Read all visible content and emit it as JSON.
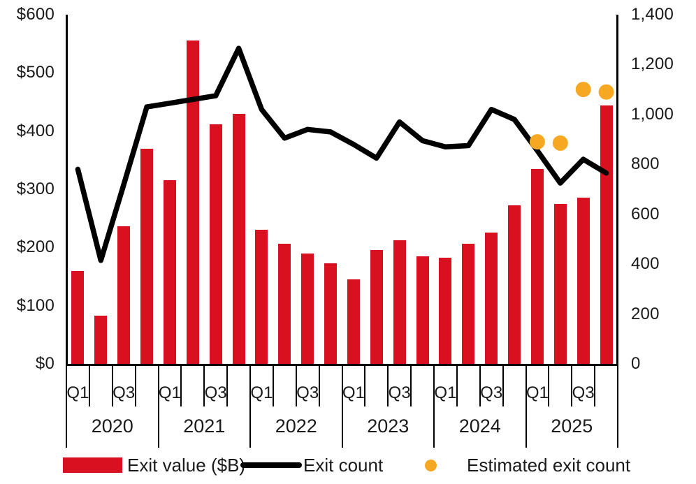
{
  "legend": {
    "items": [
      {
        "label": "Exit value ($B)",
        "color": "#d9101f",
        "swatch": "bar"
      },
      {
        "label": "Exit count",
        "color": "#000000",
        "swatch": "line"
      },
      {
        "label": "Estimated exit count",
        "color": "#f7a823",
        "swatch": "dot"
      }
    ]
  },
  "chart_data": {
    "type": "bar+line",
    "title": "",
    "categories": [
      "2020 Q1",
      "2020 Q2",
      "2020 Q3",
      "2020 Q4",
      "2021 Q1",
      "2021 Q2",
      "2021 Q3",
      "2021 Q4",
      "2022 Q1",
      "2022 Q2",
      "2022 Q3",
      "2022 Q4",
      "2023 Q1",
      "2023 Q2",
      "2023 Q3",
      "2023 Q4",
      "2024 Q1",
      "2024 Q2",
      "2024 Q3",
      "2024 Q4",
      "2025 Q1",
      "2025 Q2",
      "2025 Q3",
      "2025 Q4"
    ],
    "series": [
      {
        "name": "Exit value ($B)",
        "type": "bar",
        "axis": "left",
        "color": "#d9101f",
        "values": [
          160,
          83,
          237,
          370,
          316,
          556,
          412,
          430,
          230,
          206,
          190,
          173,
          145,
          196,
          213,
          185,
          182,
          206,
          226,
          272,
          335,
          275,
          286,
          444
        ]
      },
      {
        "name": "Exit count",
        "type": "line",
        "axis": "right",
        "color": "#000000",
        "values": [
          780,
          415,
          720,
          1030,
          1045,
          1060,
          1075,
          1265,
          1020,
          905,
          940,
          930,
          880,
          825,
          970,
          895,
          870,
          875,
          1020,
          980,
          855,
          725,
          820,
          765
        ]
      },
      {
        "name": "Estimated exit count",
        "type": "scatter",
        "axis": "right",
        "color": "#f7a823",
        "values": [
          null,
          null,
          null,
          null,
          null,
          null,
          null,
          null,
          null,
          null,
          null,
          null,
          null,
          null,
          null,
          null,
          null,
          null,
          null,
          null,
          890,
          885,
          1100,
          1090
        ]
      }
    ],
    "x_axis": {
      "years": [
        "2020",
        "2021",
        "2022",
        "2023",
        "2024",
        "2025"
      ],
      "quarters_per_year": 4,
      "quarter_labels_shown": [
        "Q1",
        "Q3"
      ]
    },
    "y_axis_left": {
      "ticks": [
        "$600",
        "$500",
        "$400",
        "$300",
        "$200",
        "$100",
        "$0"
      ],
      "min": 0,
      "max": 600
    },
    "y_axis_right": {
      "ticks": [
        "1,400",
        "1,200",
        "1,000",
        "800",
        "600",
        "400",
        "200",
        "0"
      ],
      "min": 0,
      "max": 1400
    },
    "grid": false,
    "legend_position": "bottom"
  }
}
